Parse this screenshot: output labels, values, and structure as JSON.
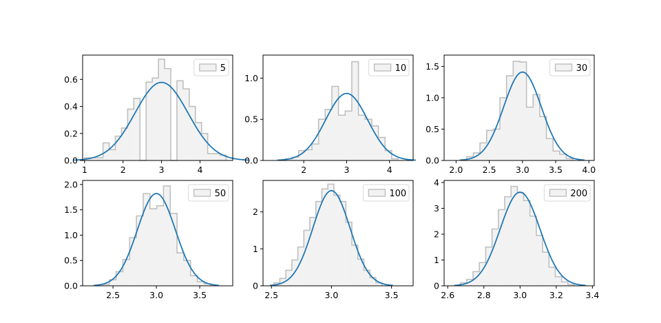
{
  "chart_data": [
    {
      "type": "histogram",
      "legend": "5",
      "legend_position": "upper right",
      "grid": false,
      "xlim": [
        0.95,
        4.85
      ],
      "ylim": [
        0,
        0.78
      ],
      "xticks": [
        "1",
        "2",
        "3",
        "4"
      ],
      "yticks": [
        "0.0",
        "0.2",
        "0.4",
        "0.6"
      ],
      "bins": {
        "edges": [
          1.0,
          1.16,
          1.32,
          1.48,
          1.64,
          1.8,
          1.96,
          2.12,
          2.28,
          2.44,
          2.6,
          2.76,
          2.92,
          3.08,
          3.24,
          3.4,
          3.56,
          3.72,
          3.88,
          4.04,
          4.2,
          4.36,
          4.52,
          4.68
        ],
        "counts": [
          0.02,
          0.02,
          0.02,
          0.13,
          0.08,
          0.18,
          0.24,
          0.38,
          0.46,
          0.0,
          0.58,
          0.61,
          0.75,
          0.68,
          0.0,
          0.59,
          0.53,
          0.4,
          0.28,
          0.2,
          0.05,
          0.05,
          0.04
        ]
      },
      "pdf": {
        "type": "normal",
        "mean": 3.0,
        "std": 0.69
      }
    },
    {
      "type": "histogram",
      "legend": "10",
      "legend_position": "upper right",
      "grid": false,
      "xlim": [
        1.05,
        4.55
      ],
      "ylim": [
        0,
        1.28
      ],
      "xticks": [
        "2",
        "3",
        "4"
      ],
      "yticks": [
        "0.0",
        "0.5",
        "1.0"
      ],
      "bins": {
        "edges": [
          1.57,
          1.725,
          1.88,
          2.035,
          2.19,
          2.345,
          2.5,
          2.655,
          2.81,
          2.965,
          3.12,
          3.275,
          3.43,
          3.585,
          3.74,
          3.895,
          4.05,
          4.2
        ],
        "counts": [
          0.02,
          0.04,
          0.12,
          0.13,
          0.2,
          0.5,
          0.62,
          0.9,
          0.55,
          0.6,
          1.2,
          0.55,
          0.5,
          0.42,
          0.28,
          0.12,
          0.02
        ]
      },
      "pdf": {
        "type": "normal",
        "mean": 3.0,
        "std": 0.49
      }
    },
    {
      "type": "histogram",
      "legend": "30",
      "legend_position": "upper right",
      "grid": false,
      "xlim": [
        1.82,
        4.08
      ],
      "ylim": [
        0,
        1.68
      ],
      "xticks": [
        "2.0",
        "2.5",
        "3.0",
        "3.5",
        "4.0"
      ],
      "yticks": [
        "0.0",
        "0.5",
        "1.0",
        "1.5"
      ],
      "bins": {
        "edges": [
          2.06,
          2.16,
          2.26,
          2.36,
          2.46,
          2.56,
          2.66,
          2.76,
          2.86,
          2.96,
          3.06,
          3.16,
          3.26,
          3.36,
          3.46,
          3.56,
          3.66,
          3.76
        ],
        "counts": [
          0.01,
          0.06,
          0.12,
          0.28,
          0.48,
          0.5,
          1.0,
          1.35,
          1.58,
          1.57,
          0.85,
          1.05,
          0.7,
          0.35,
          0.15,
          0.1,
          0.03
        ]
      },
      "pdf": {
        "type": "normal",
        "mean": 3.0,
        "std": 0.283
      }
    },
    {
      "type": "histogram",
      "legend": "50",
      "legend_position": "upper right",
      "grid": false,
      "xlim": [
        2.15,
        3.88
      ],
      "ylim": [
        0,
        2.08
      ],
      "xticks": [
        "2.5",
        "3.0",
        "3.5"
      ],
      "yticks": [
        "0.0",
        "0.5",
        "1.0",
        "1.5",
        "2.0"
      ],
      "bins": {
        "edges": [
          2.38,
          2.458,
          2.536,
          2.614,
          2.692,
          2.77,
          2.848,
          2.926,
          3.004,
          3.082,
          3.16,
          3.238,
          3.316,
          3.394,
          3.472,
          3.55,
          3.628
        ],
        "counts": [
          0.03,
          0.12,
          0.28,
          0.52,
          0.95,
          1.38,
          1.82,
          1.52,
          1.58,
          1.97,
          1.43,
          0.65,
          0.5,
          0.2,
          0.08,
          0.04
        ]
      },
      "pdf": {
        "type": "normal",
        "mean": 3.0,
        "std": 0.219
      }
    },
    {
      "type": "histogram",
      "legend": "100",
      "legend_position": "upper right",
      "grid": false,
      "xlim": [
        2.43,
        3.68
      ],
      "ylim": [
        0,
        2.85
      ],
      "xticks": [
        "2.5",
        "3.0",
        "3.5"
      ],
      "yticks": [
        "0",
        "1",
        "2"
      ],
      "bins": {
        "edges": [
          2.52,
          2.57,
          2.62,
          2.67,
          2.72,
          2.77,
          2.82,
          2.87,
          2.92,
          2.97,
          3.02,
          3.07,
          3.12,
          3.17,
          3.22,
          3.27,
          3.32,
          3.37,
          3.42
        ],
        "counts": [
          0.08,
          0.2,
          0.42,
          0.7,
          1.05,
          1.5,
          1.85,
          2.28,
          2.62,
          2.75,
          2.45,
          2.28,
          1.72,
          1.1,
          0.72,
          0.42,
          0.22,
          0.08
        ]
      },
      "pdf": {
        "type": "normal",
        "mean": 3.0,
        "std": 0.155
      }
    },
    {
      "type": "histogram",
      "legend": "200",
      "legend_position": "upper right",
      "grid": false,
      "xlim": [
        2.58,
        3.41
      ],
      "ylim": [
        0,
        4.08
      ],
      "xticks": [
        "2.6",
        "2.8",
        "3.0",
        "3.2",
        "3.4"
      ],
      "yticks": [
        "0",
        "1",
        "2",
        "3",
        "4"
      ],
      "bins": {
        "edges": [
          2.67,
          2.705,
          2.74,
          2.775,
          2.81,
          2.845,
          2.88,
          2.915,
          2.95,
          2.985,
          3.02,
          3.055,
          3.09,
          3.125,
          3.16,
          3.195,
          3.23,
          3.265,
          3.3
        ],
        "counts": [
          0.12,
          0.25,
          0.55,
          0.9,
          1.5,
          2.2,
          2.95,
          3.45,
          3.85,
          3.6,
          3.3,
          2.7,
          1.95,
          1.3,
          0.72,
          0.35,
          0.15,
          0.05
        ]
      },
      "pdf": {
        "type": "normal",
        "mean": 3.0,
        "std": 0.11
      }
    }
  ],
  "colors": {
    "hist_fill": "#f2f2f2",
    "hist_edge": "#bfbfbf",
    "pdf_line": "#1f77b4",
    "axes": "#000000"
  }
}
